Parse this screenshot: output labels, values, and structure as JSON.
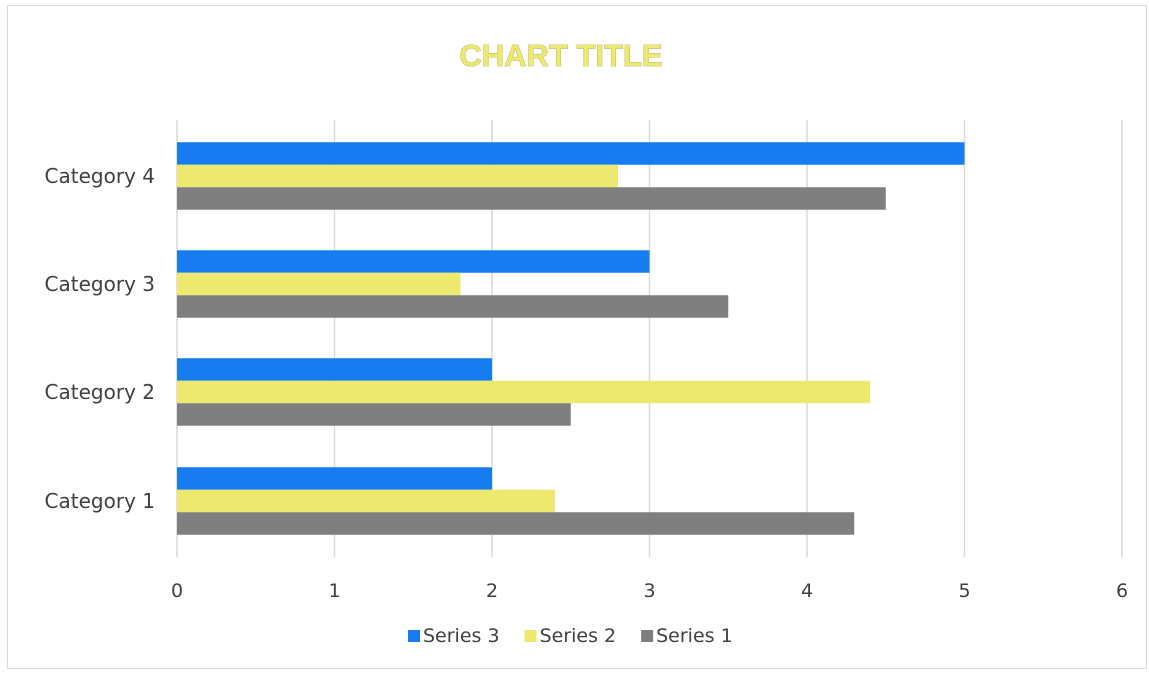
{
  "chart_data": {
    "type": "bar",
    "orientation": "horizontal",
    "title": "CHART TITLE",
    "categories": [
      "Category 1",
      "Category 2",
      "Category 3",
      "Category 4"
    ],
    "series": [
      {
        "name": "Series 1",
        "color": "#7f7f7f",
        "values": [
          4.3,
          2.5,
          3.5,
          4.5
        ]
      },
      {
        "name": "Series 2",
        "color": "#ede96f",
        "values": [
          2.4,
          4.4,
          1.8,
          2.8
        ]
      },
      {
        "name": "Series 3",
        "color": "#167cf0",
        "values": [
          2,
          2,
          3,
          5
        ]
      }
    ],
    "xlim": [
      0,
      6
    ],
    "xticks": [
      "0",
      "1",
      "2",
      "3",
      "4",
      "5",
      "6"
    ],
    "grid": true,
    "legend_position": "bottom",
    "legend_order": [
      "Series 3",
      "Series 2",
      "Series 1"
    ]
  }
}
